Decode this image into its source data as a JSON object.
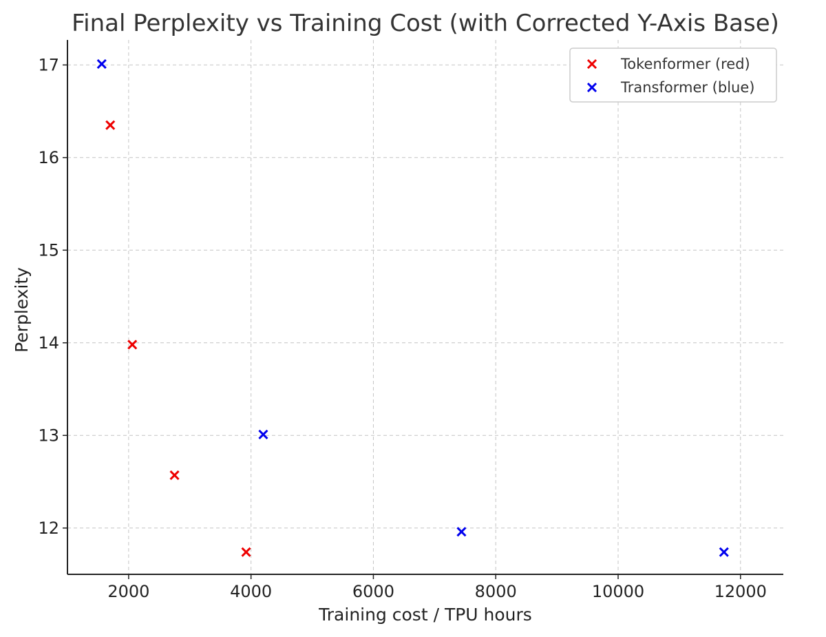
{
  "chart_data": {
    "type": "scatter",
    "title": "Final Perplexity vs Training Cost (with Corrected Y-Axis Base)",
    "xlabel": "Training cost / TPU hours",
    "ylabel": "Perplexity",
    "xlim": [
      1000,
      12700
    ],
    "ylim": [
      11.5,
      17.27
    ],
    "xticks": [
      2000,
      4000,
      6000,
      8000,
      10000,
      12000
    ],
    "yticks": [
      12,
      13,
      14,
      15,
      16,
      17
    ],
    "grid": true,
    "legend_position": "top-right",
    "marker": "x",
    "series": [
      {
        "name": "Tokenformer (red)",
        "color": "#ee0000",
        "points": [
          {
            "x": 1700,
            "y": 16.35
          },
          {
            "x": 2060,
            "y": 13.98
          },
          {
            "x": 2750,
            "y": 12.57
          },
          {
            "x": 3920,
            "y": 11.74
          }
        ]
      },
      {
        "name": "Transformer (blue)",
        "color": "#0000ee",
        "points": [
          {
            "x": 1560,
            "y": 17.01
          },
          {
            "x": 4200,
            "y": 13.01
          },
          {
            "x": 7440,
            "y": 11.96
          },
          {
            "x": 11730,
            "y": 11.74
          }
        ]
      }
    ]
  }
}
